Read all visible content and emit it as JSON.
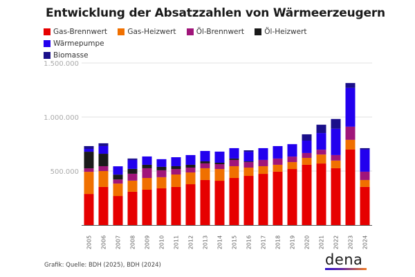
{
  "chart_data": {
    "type": "bar",
    "stacked": true,
    "title": "Entwicklung der Absatzzahlen von Wärmeerzeugern",
    "xlabel": "",
    "ylabel": "",
    "ylim": [
      0,
      1500000
    ],
    "yticks": [
      500000,
      1000000,
      1500000
    ],
    "ytick_labels": [
      "500.000",
      "1.000.000",
      "1.500.000"
    ],
    "grid": true,
    "legend_position": "top-left",
    "categories": [
      "2005",
      "2006",
      "2007",
      "2008",
      "2009",
      "2010",
      "2011",
      "2012",
      "2013",
      "2014",
      "2015",
      "2016",
      "2017",
      "2018",
      "2019",
      "2020",
      "2021",
      "2022",
      "2023",
      "2024"
    ],
    "series": [
      {
        "name": "Gas-Brennwert",
        "color": "#e60000",
        "values": [
          288000,
          353000,
          269000,
          308000,
          327000,
          340000,
          353000,
          378000,
          417000,
          410000,
          436000,
          455000,
          474000,
          494000,
          519000,
          558000,
          570000,
          526000,
          699000,
          353000
        ]
      },
      {
        "name": "Gas-Heizwert",
        "color": "#f07000",
        "values": [
          205000,
          147000,
          115000,
          103000,
          109000,
          103000,
          115000,
          109000,
          109000,
          109000,
          109000,
          77000,
          71000,
          64000,
          64000,
          64000,
          83000,
          71000,
          90000,
          64000
        ]
      },
      {
        "name": "Öl-Brennwert",
        "color": "#a0157a",
        "values": [
          32000,
          45000,
          38000,
          64000,
          90000,
          64000,
          51000,
          45000,
          45000,
          45000,
          58000,
          51000,
          58000,
          58000,
          51000,
          45000,
          45000,
          51000,
          122000,
          77000
        ]
      },
      {
        "name": "Öl-Heizwert",
        "color": "#1a1a1a",
        "values": [
          154000,
          115000,
          45000,
          45000,
          32000,
          32000,
          26000,
          26000,
          19000,
          13000,
          13000,
          6000,
          0,
          0,
          0,
          0,
          0,
          0,
          0,
          0
        ]
      },
      {
        "name": "Wärmepumpe",
        "color": "#2200ee",
        "values": [
          26000,
          71000,
          77000,
          83000,
          77000,
          71000,
          83000,
          90000,
          96000,
          103000,
          96000,
          90000,
          109000,
          115000,
          115000,
          115000,
          154000,
          244000,
          359000,
          205000
        ]
      },
      {
        "name": "Biomasse",
        "color": "#1a0f8a",
        "values": [
          26000,
          26000,
          0,
          13000,
          0,
          0,
          0,
          0,
          0,
          0,
          0,
          13000,
          0,
          0,
          0,
          58000,
          77000,
          90000,
          45000,
          13000
        ]
      }
    ]
  },
  "footer": {
    "source": "Grafik: Quelle: BDH (2025), BDH (2024)",
    "logo": "dena"
  }
}
